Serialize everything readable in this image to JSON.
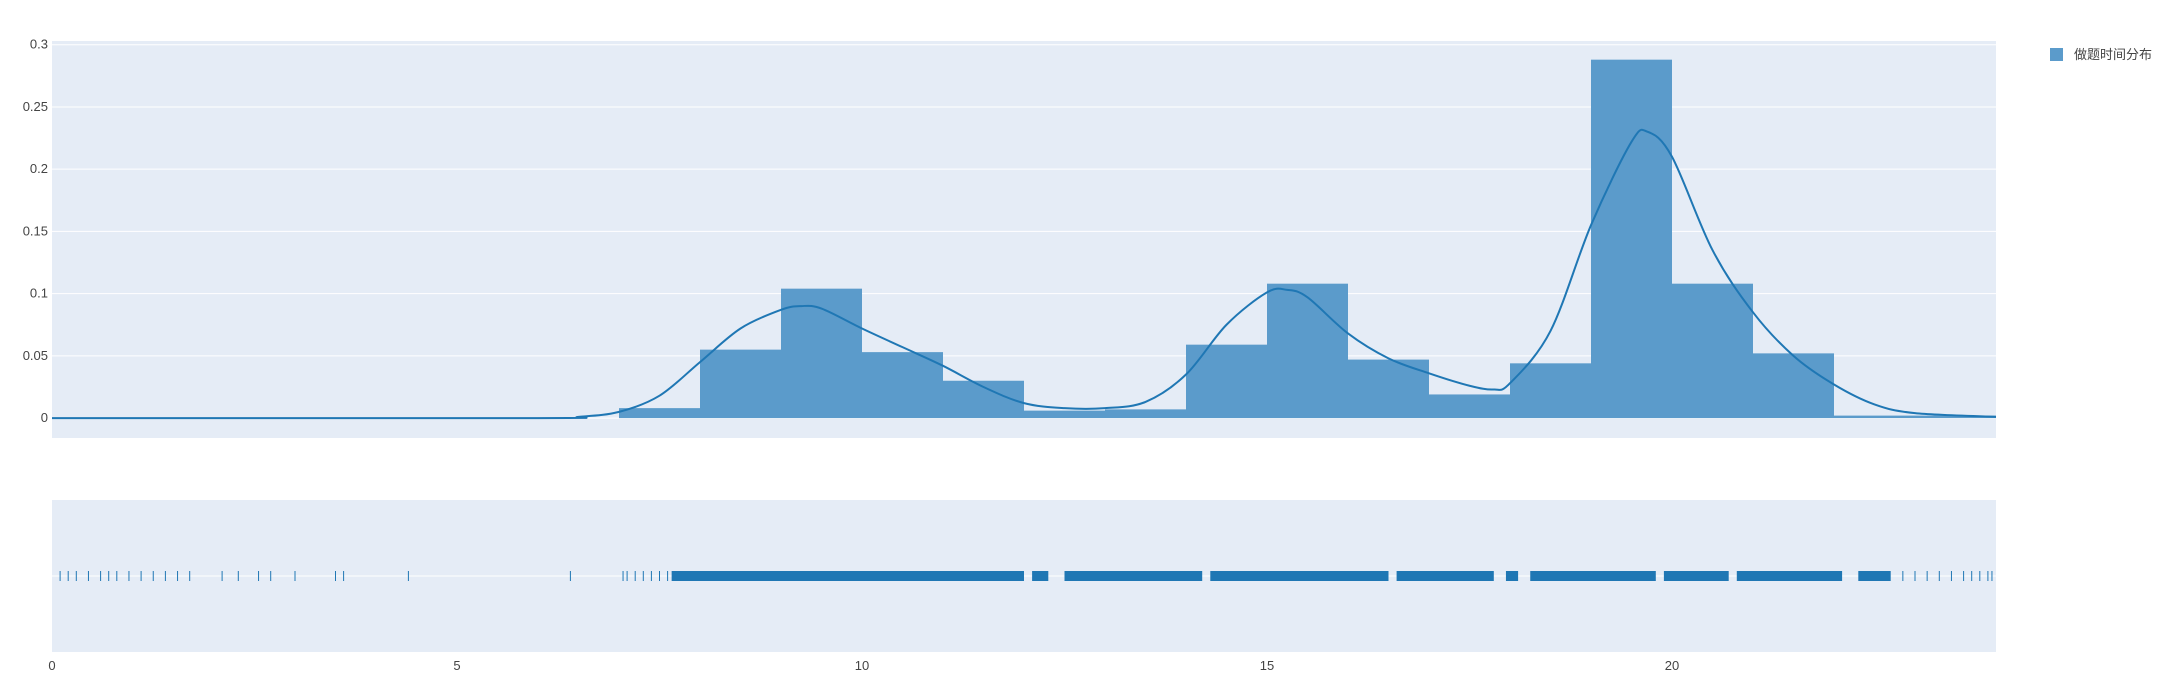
{
  "chart_data": {
    "type": "histogram",
    "legend": {
      "entries": [
        "做题时间分布"
      ],
      "placement": "top-right"
    },
    "series": [
      {
        "name": "做题时间分布",
        "bins": [
          {
            "x0": 7,
            "x1": 8,
            "y": 0.008
          },
          {
            "x0": 8,
            "x1": 9,
            "y": 0.055
          },
          {
            "x0": 9,
            "x1": 10,
            "y": 0.104
          },
          {
            "x0": 10,
            "x1": 11,
            "y": 0.053
          },
          {
            "x0": 11,
            "x1": 12,
            "y": 0.03
          },
          {
            "x0": 12,
            "x1": 13,
            "y": 0.006
          },
          {
            "x0": 13,
            "x1": 14,
            "y": 0.007
          },
          {
            "x0": 14,
            "x1": 15,
            "y": 0.059
          },
          {
            "x0": 15,
            "x1": 16,
            "y": 0.108
          },
          {
            "x0": 16,
            "x1": 17,
            "y": 0.047
          },
          {
            "x0": 17,
            "x1": 18,
            "y": 0.019
          },
          {
            "x0": 18,
            "x1": 19,
            "y": 0.044
          },
          {
            "x0": 19,
            "x1": 20,
            "y": 0.288
          },
          {
            "x0": 20,
            "x1": 21,
            "y": 0.108
          },
          {
            "x0": 21,
            "x1": 22,
            "y": 0.052
          },
          {
            "x0": 22,
            "x1": 24,
            "y": 0.002
          }
        ],
        "kde": {
          "x": [
            0,
            6,
            6.5,
            7,
            7.5,
            8,
            8.5,
            9,
            9.25,
            9.5,
            10,
            10.5,
            11,
            11.5,
            12,
            12.5,
            13,
            13.5,
            14,
            14.5,
            15,
            15.25,
            15.5,
            16,
            16.5,
            17,
            17.5,
            17.8,
            18,
            18.5,
            19,
            19.5,
            19.7,
            20,
            20.5,
            21,
            21.5,
            22,
            22.5,
            23,
            24
          ],
          "y": [
            0,
            0,
            0.001,
            0.005,
            0.018,
            0.045,
            0.072,
            0.087,
            0.09,
            0.088,
            0.072,
            0.057,
            0.042,
            0.025,
            0.012,
            0.008,
            0.008,
            0.013,
            0.035,
            0.075,
            0.101,
            0.103,
            0.097,
            0.068,
            0.048,
            0.036,
            0.026,
            0.023,
            0.028,
            0.07,
            0.155,
            0.222,
            0.23,
            0.21,
            0.135,
            0.085,
            0.05,
            0.027,
            0.011,
            0.004,
            0.001
          ]
        }
      }
    ],
    "rug": [
      0.1,
      0.2,
      0.3,
      0.45,
      0.6,
      0.7,
      0.8,
      0.95,
      1.1,
      1.25,
      1.4,
      1.55,
      1.7,
      2.1,
      2.3,
      2.55,
      2.7,
      3.0,
      3.5,
      3.6,
      4.4,
      6.4,
      7.05,
      7.1,
      7.2,
      7.3,
      7.4,
      7.5,
      7.6
    ],
    "rug_dense": [
      [
        7.65,
        12.0
      ],
      [
        12.1,
        12.3
      ],
      [
        12.5,
        14.2
      ],
      [
        14.3,
        16.5
      ],
      [
        16.6,
        17.8
      ],
      [
        17.95,
        18.1
      ],
      [
        18.25,
        19.8
      ],
      [
        19.9,
        20.7
      ],
      [
        20.8,
        22.1
      ],
      [
        22.3,
        22.7
      ]
    ],
    "rug_sparse_tail": [
      22.85,
      23.0,
      23.15,
      23.3,
      23.45,
      23.6,
      23.7,
      23.8,
      23.9,
      23.95
    ],
    "x_axis": {
      "range": [
        0,
        24
      ],
      "ticks": [
        0,
        5,
        10,
        15,
        20
      ],
      "tick_labels": [
        "0",
        "5",
        "10",
        "15",
        "20"
      ]
    },
    "y_axis": {
      "range": [
        -0.016,
        0.303
      ],
      "ticks": [
        0,
        0.05,
        0.1,
        0.15,
        0.2,
        0.25,
        0.3
      ],
      "tick_labels": [
        "0",
        "0.05",
        "0.1",
        "0.15",
        "0.2",
        "0.25",
        "0.3"
      ]
    },
    "grid": true,
    "colors": {
      "bar": "#5b9bcb",
      "line": "#1f77b4",
      "plot_bg": "#e5ecf6",
      "grid": "#ffffff"
    }
  }
}
